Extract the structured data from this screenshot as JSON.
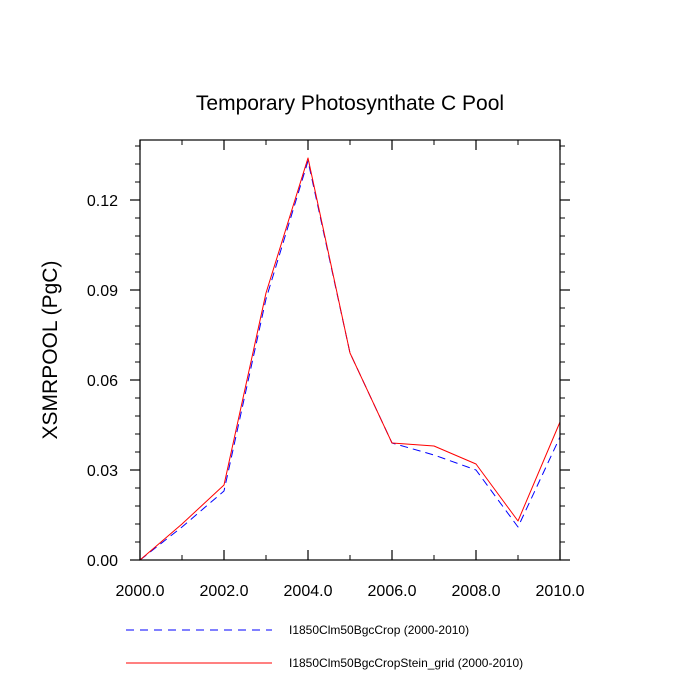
{
  "chart_data": {
    "type": "line",
    "title": "Temporary Photosynthate C Pool",
    "xlabel": "",
    "ylabel": "XSMRPOOL  (PgC)",
    "xlim": [
      2000,
      2010
    ],
    "ylim": [
      0,
      0.14
    ],
    "x_ticks": [
      2000,
      2002,
      2004,
      2006,
      2008,
      2010
    ],
    "x_tick_labels": [
      "2000.0",
      "2002.0",
      "2004.0",
      "2006.0",
      "2008.0",
      "2010.0"
    ],
    "y_ticks": [
      0,
      0.03,
      0.06,
      0.09,
      0.12
    ],
    "y_tick_labels": [
      "0.00",
      "0.03",
      "0.06",
      "0.09",
      "0.12"
    ],
    "grid": false,
    "legend_position": "bottom",
    "x": [
      2000,
      2001,
      2002,
      2003,
      2004,
      2005,
      2006,
      2007,
      2008,
      2009,
      2010
    ],
    "series": [
      {
        "name": "I1850Clm50BgcCrop (2000-2010)",
        "color": "#0000ff",
        "style": "dashed",
        "values": [
          0.0,
          0.011,
          0.023,
          0.087,
          0.133,
          0.069,
          0.039,
          0.035,
          0.03,
          0.011,
          0.041
        ]
      },
      {
        "name": "I1850Clm50BgcCropStein_grid (2000-2010)",
        "color": "#ff0000",
        "style": "solid",
        "values": [
          0.0,
          0.012,
          0.025,
          0.089,
          0.134,
          0.069,
          0.039,
          0.038,
          0.032,
          0.013,
          0.046
        ]
      }
    ]
  }
}
